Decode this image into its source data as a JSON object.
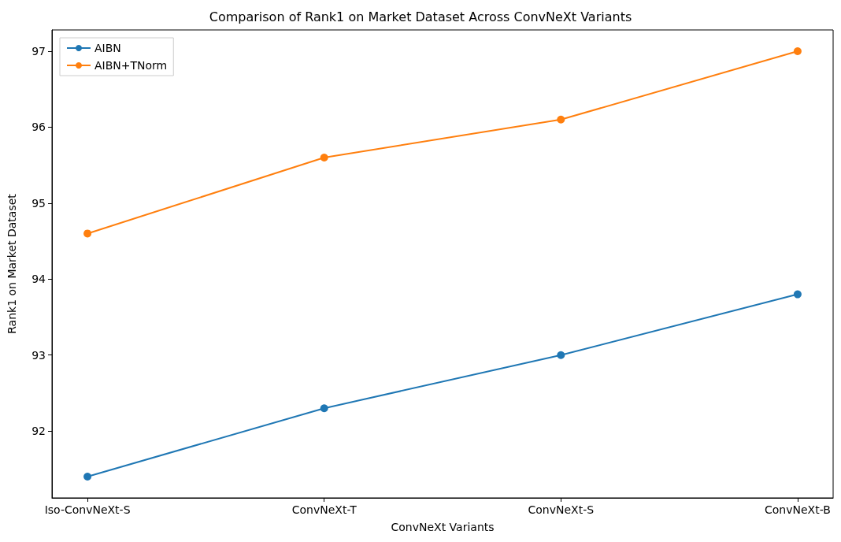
{
  "chart_data": {
    "type": "line",
    "title": "Comparison of Rank1 on Market Dataset Across ConvNeXt Variants",
    "xlabel": "ConvNeXt Variants",
    "ylabel": "Rank1 on Market Dataset",
    "categories": [
      "Iso-ConvNeXt-S",
      "ConvNeXt-T",
      "ConvNeXt-S",
      "ConvNeXt-B"
    ],
    "series": [
      {
        "name": "AIBN",
        "color": "#1f77b4",
        "values": [
          91.4,
          92.3,
          93.0,
          93.8
        ]
      },
      {
        "name": "AIBN+TNorm",
        "color": "#ff7f0e",
        "values": [
          94.6,
          95.6,
          96.1,
          97.0
        ]
      }
    ],
    "ylim": [
      91.12,
      97.28
    ],
    "yticks": [
      92,
      93,
      94,
      95,
      96,
      97
    ],
    "grid": false,
    "legend": "top left",
    "marker": "circle",
    "line_style": "solid"
  }
}
